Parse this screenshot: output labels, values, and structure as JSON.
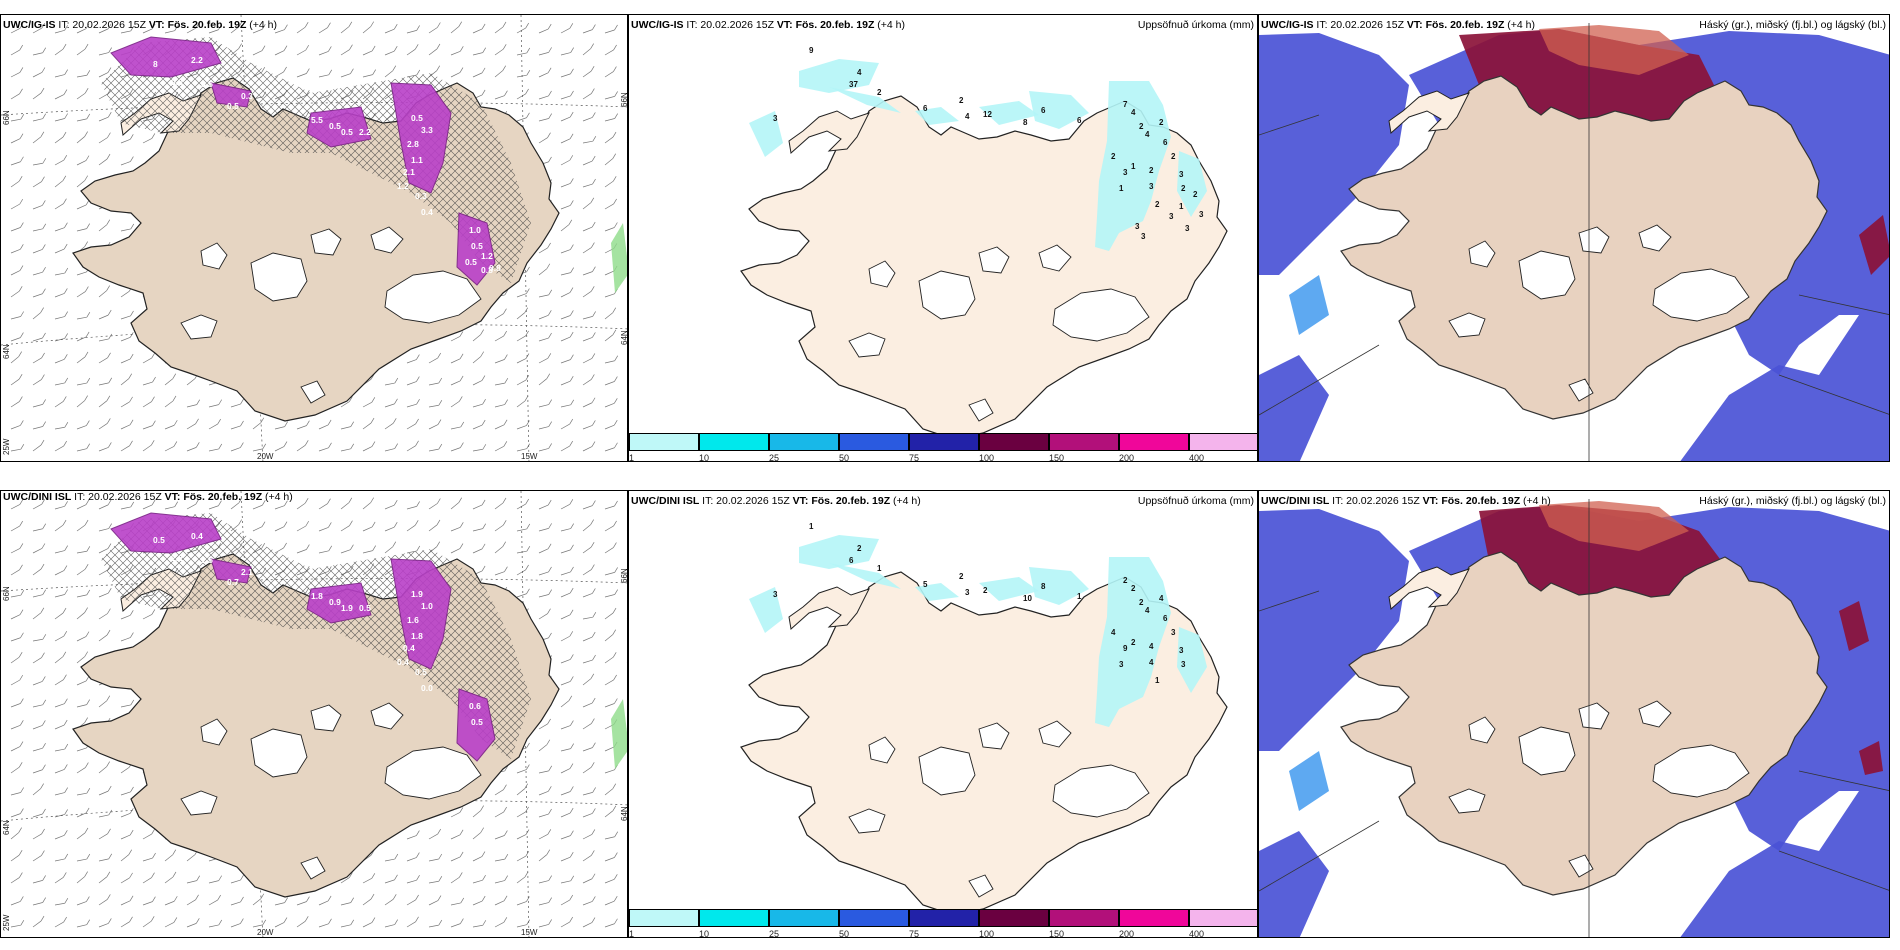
{
  "panels": {
    "top_left": {
      "model": "UWC/IG-IS",
      "it": "IT: 20.02.2026 15Z",
      "vt_label": "VT:",
      "vt": "Fös. 20.feb. 19Z",
      "lead": "(+4 h)"
    },
    "top_mid": {
      "model": "UWC/IG-IS",
      "it": "IT: 20.02.2026 15Z",
      "vt_label": "VT:",
      "vt": "Fös. 20.feb. 19Z",
      "lead": "(+4 h)",
      "right_title": "Uppsöfnuð úrkoma (mm)"
    },
    "top_right": {
      "model": "UWC/IG-IS",
      "it": "IT: 20.02.2026 15Z",
      "vt_label": "VT:",
      "vt": "Fös. 20.feb. 19Z",
      "lead": "(+4 h)",
      "right_title": "Háský (gr.), miðský (fj.bl.) og lágský (bl.)"
    },
    "bot_left": {
      "model": "UWC/DINI ISL",
      "it": "IT: 20.02.2026 15Z",
      "vt_label": "VT:",
      "vt": "Fös. 20.feb. 19Z",
      "lead": "(+4 h)"
    },
    "bot_mid": {
      "model": "UWC/DINI ISL",
      "it": "IT: 20.02.2026 15Z",
      "vt_label": "VT:",
      "vt": "Fös. 20.feb. 19Z",
      "lead": "(+4 h)",
      "right_title": "Uppsöfnuð úrkoma (mm)"
    },
    "bot_right": {
      "model": "UWC/DINI ISL",
      "it": "IT: 20.02.2026 15Z",
      "vt_label": "VT:",
      "vt": "Fös. 20.feb. 19Z",
      "lead": "(+4 h)",
      "right_title": "Háský (gr.), miðský (fj.bl.) og lágský (bl.)"
    }
  },
  "axis_labels": {
    "lat_66": "66N",
    "lat_64": "64N",
    "lon_20w": "20W",
    "lon_15w": "15W",
    "lon_25w": "25W"
  },
  "colorbar": {
    "ticks": [
      "1",
      "10",
      "25",
      "50",
      "75",
      "100",
      "150",
      "200",
      "400"
    ],
    "colors": [
      "#bff8f8",
      "#00e8ec",
      "#18b8e8",
      "#2a5ae0",
      "#2222a8",
      "#6a0040",
      "#b2107a",
      "#f0069a",
      "#f4b4ec"
    ]
  },
  "precip_top": {
    "labels": [
      "9",
      "4",
      "37",
      "2",
      "6",
      "3",
      "2",
      "4",
      "12",
      "8",
      "6",
      "6",
      "7",
      "4",
      "2",
      "4",
      "2",
      "6",
      "2",
      "3",
      "1",
      "2",
      "1",
      "3",
      "2",
      "3",
      "2",
      "2",
      "3",
      "3",
      "3",
      "1",
      "2",
      "3",
      "3"
    ]
  },
  "precip_bot": {
    "labels": [
      "1",
      "2",
      "6",
      "1",
      "5",
      "3",
      "2",
      "3",
      "2",
      "10",
      "8",
      "1",
      "2",
      "2",
      "2",
      "4",
      "4",
      "6",
      "4",
      "9",
      "2",
      "4",
      "3",
      "4",
      "3",
      "3",
      "3",
      "1"
    ]
  },
  "snow_top": {
    "labels": [
      "8",
      "2.2",
      "0.3",
      "0.5",
      "0.3",
      "0.5",
      "5.5",
      "0.5",
      "0.5",
      "2.2",
      "0.5",
      "3.3",
      "2.8",
      "1.1",
      "2.1",
      "1.2",
      "0.3",
      "0.4",
      "1.0",
      "0.5",
      "0.5",
      "1.2",
      "0.8",
      "0.8"
    ]
  },
  "snow_bot": {
    "labels": [
      "0.5",
      "0.4",
      "2.2",
      "1.5",
      "2.1",
      "0.7",
      "1.8",
      "0.9",
      "1.9",
      "0.5",
      "1.9",
      "1.0",
      "1.6",
      "1.8",
      "0.4",
      "0.4",
      "0.5",
      "0.0",
      "0.6",
      "0.5"
    ]
  }
}
